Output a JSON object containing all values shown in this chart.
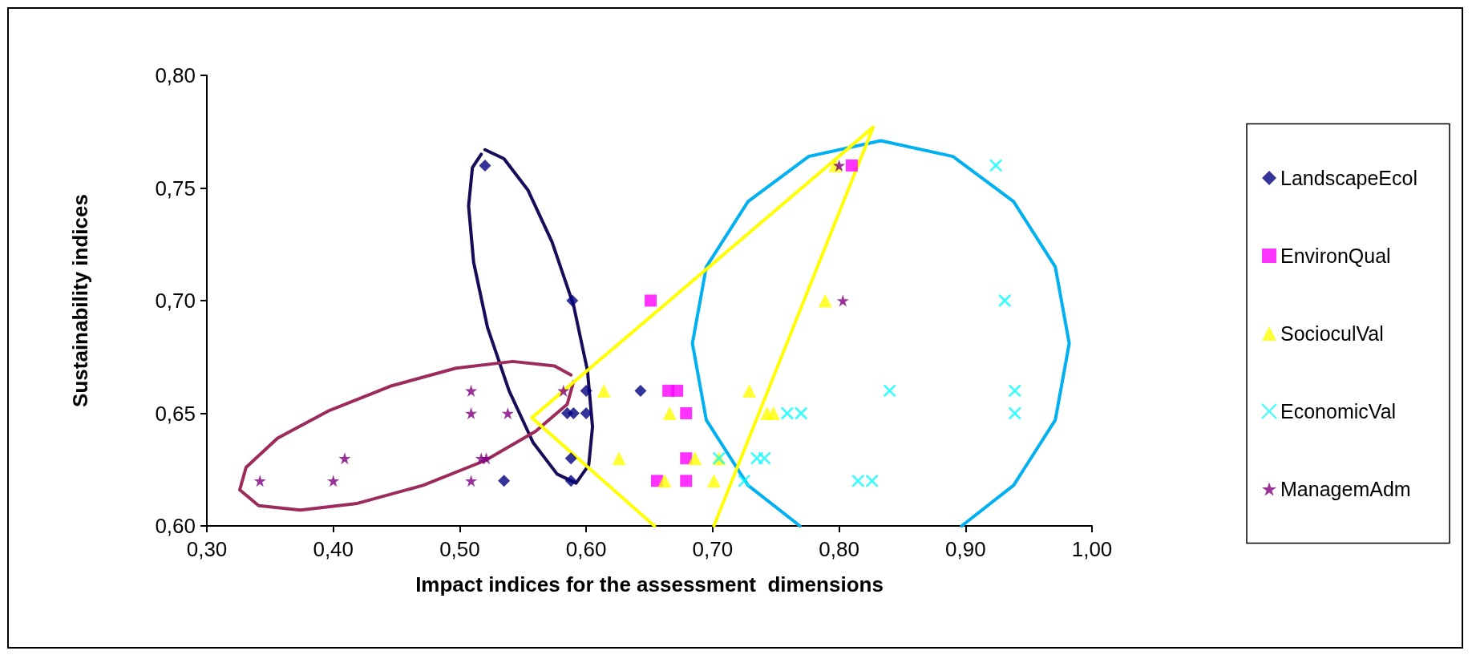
{
  "chart_data": {
    "type": "scatter",
    "xlabel": "Impact indices for the assessment  dimensions",
    "ylabel": "Sustainability indices",
    "xlim": [
      0.3,
      1.0
    ],
    "xticks": [
      {
        "value": 0.3,
        "label": "0,30"
      },
      {
        "value": 0.4,
        "label": "0,40"
      },
      {
        "value": 0.5,
        "label": "0,50"
      },
      {
        "value": 0.6,
        "label": "0,60"
      },
      {
        "value": 0.7,
        "label": "0,70"
      },
      {
        "value": 0.8,
        "label": "0,80"
      },
      {
        "value": 0.9,
        "label": "0,90"
      },
      {
        "value": 1.0,
        "label": "1,00"
      }
    ],
    "ylim": [
      0.6,
      0.8
    ],
    "yticks": [
      {
        "value": 0.6,
        "label": "0,60"
      },
      {
        "value": 0.65,
        "label": "0,65"
      },
      {
        "value": 0.7,
        "label": "0,70"
      },
      {
        "value": 0.75,
        "label": "0,75"
      },
      {
        "value": 0.8,
        "label": "0,80"
      }
    ],
    "grid": false,
    "legend": "right",
    "series": [
      {
        "type": "line",
        "color": "#1a0a5a",
        "marker": "none",
        "x": [
          0.52,
          0.535,
          0.554,
          0.573,
          0.59,
          0.601,
          0.605,
          0.602,
          0.592,
          0.577,
          0.558,
          0.539,
          0.522,
          0.511,
          0.507,
          0.51,
          0.517
        ],
        "values": [
          0.767,
          0.763,
          0.749,
          0.726,
          0.698,
          0.669,
          0.644,
          0.627,
          0.619,
          0.623,
          0.637,
          0.66,
          0.688,
          0.717,
          0.742,
          0.759,
          0.765
        ]
      },
      {
        "type": "line",
        "color": "#9c2a5a",
        "marker": "none",
        "x": [
          0.59,
          0.585,
          0.56,
          0.52,
          0.471,
          0.419,
          0.374,
          0.341,
          0.326,
          0.331,
          0.356,
          0.396,
          0.445,
          0.497,
          0.542,
          0.575,
          0.588
        ],
        "values": [
          0.664,
          0.654,
          0.642,
          0.629,
          0.618,
          0.61,
          0.607,
          0.609,
          0.616,
          0.626,
          0.639,
          0.651,
          0.662,
          0.67,
          0.673,
          0.671,
          0.667
        ]
      },
      {
        "type": "line",
        "color": "#00b0f0",
        "marker": "none",
        "x": [
          0.833,
          0.89,
          0.938,
          0.971,
          0.982,
          0.971,
          0.938,
          0.897,
          0.833,
          0.769,
          0.728,
          0.695,
          0.684,
          0.695,
          0.728,
          0.776,
          0.833
        ],
        "values": [
          0.771,
          0.764,
          0.744,
          0.715,
          0.681,
          0.647,
          0.618,
          0.6,
          null,
          0.6,
          0.618,
          0.647,
          0.681,
          0.715,
          0.744,
          0.764,
          0.771
        ]
      },
      {
        "type": "line",
        "color": "#ffff00",
        "marker": "none",
        "x": [
          0.701,
          0.827,
          0.557,
          0.654
        ],
        "values": [
          0.6,
          0.777,
          0.648,
          0.6
        ]
      },
      {
        "name": "LandscapeEcol",
        "color": "#000080",
        "marker": "diamond",
        "x": [
          0.52,
          0.589,
          0.6,
          0.585,
          0.59,
          0.6,
          0.588,
          0.588,
          0.535,
          0.643
        ],
        "values": [
          0.76,
          0.7,
          0.66,
          0.65,
          0.65,
          0.65,
          0.63,
          0.62,
          0.62,
          0.66
        ]
      },
      {
        "name": "EnvironQual",
        "color": "#ff00ff",
        "marker": "square",
        "x": [
          0.651,
          0.665,
          0.672,
          0.679,
          0.679,
          0.679,
          0.656,
          0.81
        ],
        "values": [
          0.7,
          0.66,
          0.66,
          0.65,
          0.63,
          0.62,
          0.62,
          0.76
        ]
      },
      {
        "name": "SocioculVal",
        "color": "#ffff00",
        "marker": "triangle",
        "x": [
          0.614,
          0.626,
          0.666,
          0.662,
          0.686,
          0.701,
          0.705,
          0.729,
          0.743,
          0.748,
          0.789,
          0.797
        ],
        "values": [
          0.66,
          0.63,
          0.65,
          0.62,
          0.63,
          0.62,
          0.63,
          0.66,
          0.65,
          0.65,
          0.7,
          0.76
        ]
      },
      {
        "name": "EconomicVal",
        "color": "#00ffff",
        "marker": "cross",
        "x": [
          0.705,
          0.735,
          0.741,
          0.725,
          0.759,
          0.77,
          0.924,
          0.931,
          0.84,
          0.939,
          0.939,
          0.815,
          0.826
        ],
        "values": [
          0.63,
          0.63,
          0.63,
          0.62,
          0.65,
          0.65,
          0.76,
          0.7,
          0.66,
          0.66,
          0.65,
          0.62,
          0.62
        ]
      },
      {
        "name": "ManagemAdm",
        "color": "#800080",
        "marker": "star",
        "x": [
          0.342,
          0.4,
          0.409,
          0.509,
          0.509,
          0.538,
          0.517,
          0.521,
          0.509,
          0.582,
          0.8,
          0.803
        ],
        "values": [
          0.62,
          0.62,
          0.63,
          0.66,
          0.65,
          0.65,
          0.63,
          0.63,
          0.62,
          0.66,
          0.76,
          0.7
        ]
      }
    ]
  }
}
